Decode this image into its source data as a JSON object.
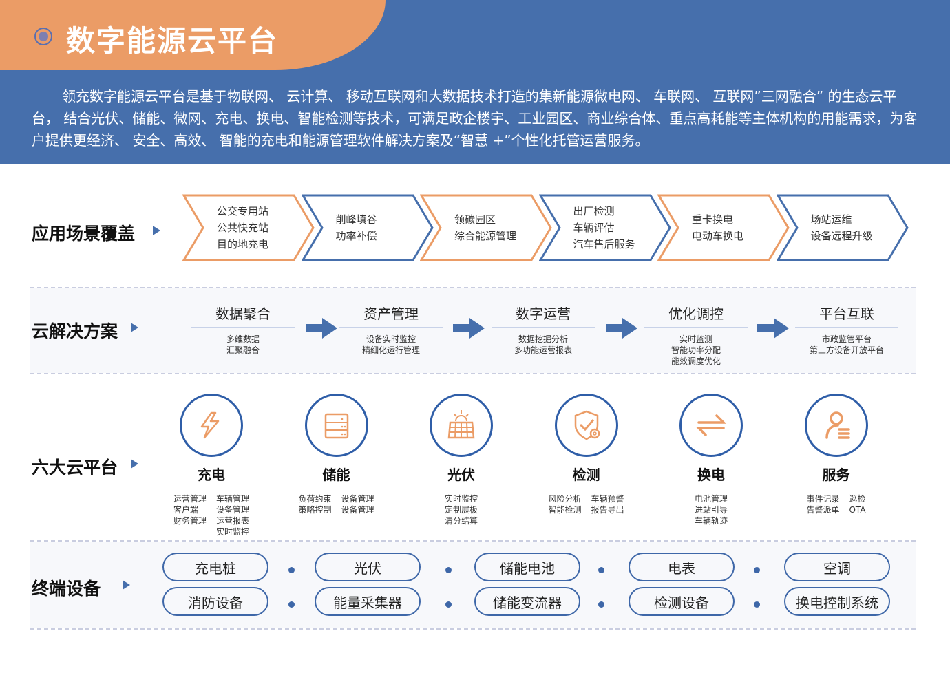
{
  "header": {
    "title": "数字能源云平台",
    "intro": "领充数字能源云平台是基于物联网、 云计算、 移动互联网和大数据技术打造的集新能源微电网、 车联网、 互联网”三网融合” 的生态云平台， 结合光伏、储能、微网、充电、换电、智能检测等技术，可满足政企楼宇、工业园区、商业综合体、重点高耗能等主体机构的用能需求，为客户提供更经济、 安全、高效、 智能的充电和能源管理软件解决方案及“智慧 +”个性化托管运营服务。"
  },
  "colors": {
    "blue": "#466fac",
    "orange": "#eb9c66"
  },
  "scenarios": {
    "label": "应用场景覆盖",
    "items": [
      {
        "lines": [
          "公交专用站",
          "公共快充站",
          "目的地充电"
        ],
        "color": "orange"
      },
      {
        "lines": [
          "削峰填谷",
          "功率补偿"
        ],
        "color": "blue"
      },
      {
        "lines": [
          "领碳园区",
          "综合能源管理"
        ],
        "color": "orange"
      },
      {
        "lines": [
          "出厂检测",
          "车辆评估",
          "汽车售后服务"
        ],
        "color": "blue"
      },
      {
        "lines": [
          "重卡换电",
          "电动车换电"
        ],
        "color": "orange"
      },
      {
        "lines": [
          "场站运维",
          "设备远程升级"
        ],
        "color": "blue"
      }
    ]
  },
  "solutions": {
    "label": "云解决方案",
    "items": [
      {
        "title": "数据聚合",
        "lines": [
          "多维数据",
          "汇聚融合"
        ]
      },
      {
        "title": "资产管理",
        "lines": [
          "设备实时监控",
          "精细化运行管理"
        ]
      },
      {
        "title": "数字运营",
        "lines": [
          "数据挖掘分析",
          "多功能运营报表"
        ]
      },
      {
        "title": "优化调控",
        "lines": [
          "实时监测",
          "智能功率分配",
          "能效调度优化"
        ]
      },
      {
        "title": "平台互联",
        "lines": [
          "市政监管平台",
          "第三方设备开放平台"
        ]
      }
    ]
  },
  "platforms": {
    "label": "六大云平台",
    "items": [
      {
        "name": "充电",
        "icon": "lightning-icon",
        "cols": [
          [
            "运营管理",
            "客户端",
            "财务管理"
          ],
          [
            "车辆管理",
            "设备管理",
            "运营报表",
            "实时监控"
          ]
        ]
      },
      {
        "name": "储能",
        "icon": "server-rack-icon",
        "cols": [
          [
            "负荷约束",
            "策略控制"
          ],
          [
            "设备管理",
            "设备管理"
          ]
        ]
      },
      {
        "name": "光伏",
        "icon": "solar-panel-icon",
        "cols": [
          [
            "实时监控",
            "定制展板",
            "清分结算"
          ]
        ]
      },
      {
        "name": "检测",
        "icon": "shield-check-gear-icon",
        "cols": [
          [
            "风险分析",
            "智能检测"
          ],
          [
            "车辆预警",
            "报告导出"
          ]
        ]
      },
      {
        "name": "换电",
        "icon": "swap-arrows-icon",
        "cols": [
          [
            "电池管理",
            "进站引导",
            "车辆轨迹"
          ]
        ]
      },
      {
        "name": "服务",
        "icon": "user-list-icon",
        "cols": [
          [
            "事件记录",
            "告警派单"
          ],
          [
            "巡检",
            "OTA"
          ]
        ]
      }
    ]
  },
  "devices": {
    "label": "终端设备",
    "top": [
      "充电桩",
      "光伏",
      "储能电池",
      "电表",
      "空调"
    ],
    "bottom": [
      "消防设备",
      "能量采集器",
      "储能变流器",
      "检测设备",
      "换电控制系统"
    ]
  }
}
